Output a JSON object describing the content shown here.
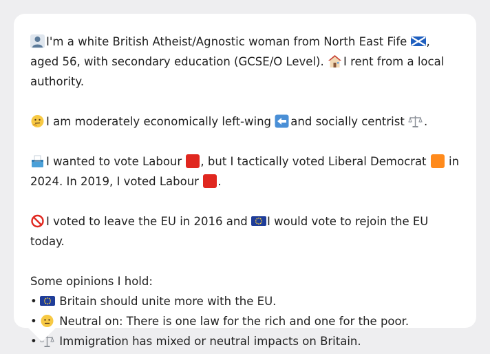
{
  "profile": {
    "line1": {
      "part1": "I'm a white British Atheist/Agnostic woman from North East Fife",
      "part2": ", aged 56, with secondary education (GCSE/O Level).",
      "part3": "I rent from a local authority."
    },
    "line2": {
      "part1": "I am moderately economically left-wing",
      "part2": "and socially centrist",
      "part3": "."
    },
    "line3": {
      "part1": "I wanted to vote Labour",
      "part2": ", but I tactically voted Liberal Democrat",
      "part3": "in 2024. In 2019, I voted Labour",
      "part4": "."
    },
    "line4": {
      "part1": "I voted to leave the EU in 2016 and",
      "part2": "I would vote to rejoin the EU today."
    },
    "opinions_heading": "Some opinions I hold:",
    "opinions": [
      "Britain should unite more with the EU.",
      "Neutral on: There is one law for the rich and one for the poor.",
      "Immigration has mixed or neutral impacts on Britain."
    ],
    "bullet": "•"
  },
  "colors": {
    "labour": "#e0271f",
    "libdem": "#ff8a1c",
    "eu_blue": "#1f3d99",
    "card_bg": "#ffffff",
    "page_bg": "#eeeef0"
  },
  "icons": {
    "person": "person-silhouette-icon",
    "scotland_flag": "scotland-flag-icon",
    "house": "house-icon",
    "thinking": "thinking-face-icon",
    "left_arrow": "left-arrow-icon",
    "scales": "balance-scale-icon",
    "ballot": "ballot-box-icon",
    "no_entry": "prohibited-icon",
    "eu_flag": "eu-flag-icon",
    "neutral_face": "neutral-face-icon"
  }
}
